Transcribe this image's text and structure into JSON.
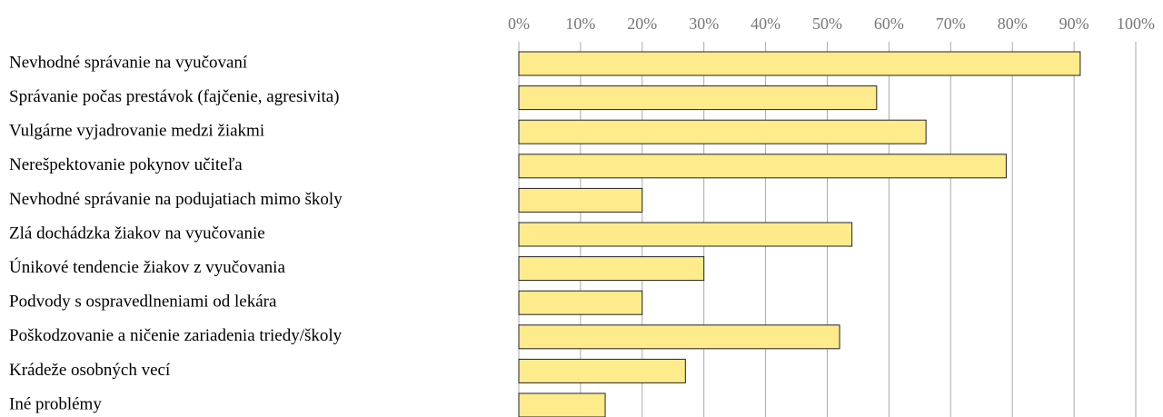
{
  "chart_data": {
    "type": "barh",
    "categories": [
      "Nevhodné správanie na vyučovaní",
      "Správanie počas prestávok (fajčenie, agresivita)",
      "Vulgárne vyjadrovanie medzi žiakmi",
      "Nerešpektovanie pokynov učiteľa",
      "Nevhodné správanie na podujatiach mimo školy",
      "Zlá dochádzka žiakov na vyučovanie",
      "Únikové tendencie žiakov z vyučovania",
      "Podvody s ospravedlneniami od lekára",
      "Poškodzovanie a ničenie zariadenia triedy/školy",
      "Krádeže osobných vecí",
      "Iné problémy"
    ],
    "values": [
      91,
      58,
      66,
      79,
      20,
      54,
      30,
      20,
      52,
      27,
      14
    ],
    "color": "#fdeb8c",
    "xlim": [
      0,
      100
    ],
    "xticks": [
      {
        "value": 0,
        "label": "0%"
      },
      {
        "value": 10,
        "label": "10%"
      },
      {
        "value": 20,
        "label": "20%"
      },
      {
        "value": 30,
        "label": "30%"
      },
      {
        "value": 40,
        "label": "40%"
      },
      {
        "value": 50,
        "label": "50%"
      },
      {
        "value": 60,
        "label": "60%"
      },
      {
        "value": 70,
        "label": "70%"
      },
      {
        "value": 80,
        "label": "80%"
      },
      {
        "value": 90,
        "label": "90%"
      },
      {
        "value": 100,
        "label": "100%"
      }
    ],
    "grid": true
  }
}
